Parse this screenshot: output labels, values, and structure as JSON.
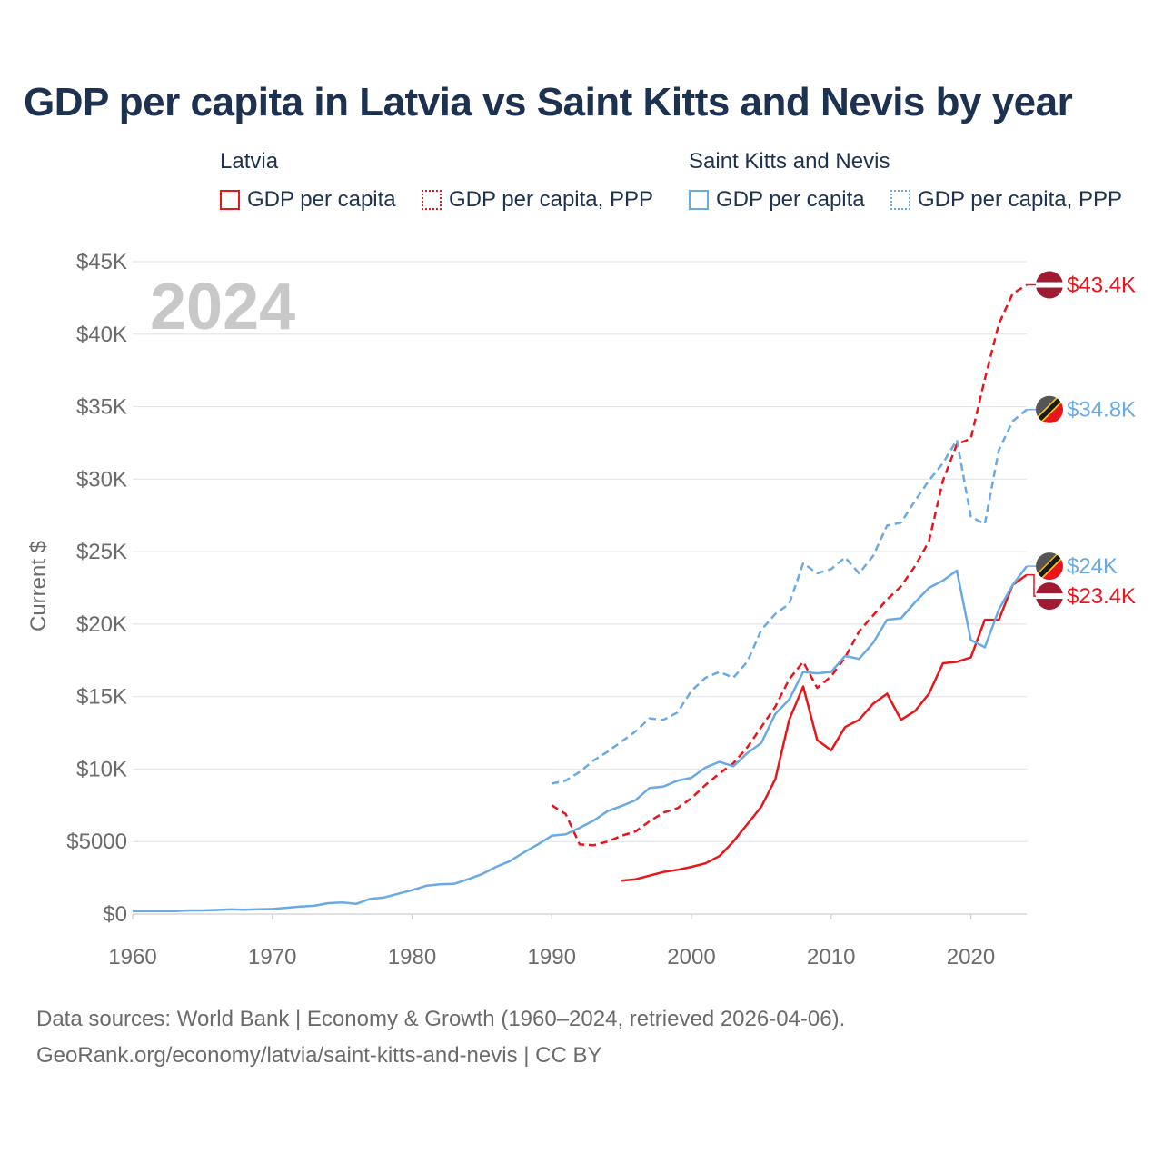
{
  "title": "GDP per capita in Latvia vs Saint Kitts and Nevis by year",
  "legend": {
    "groups": [
      {
        "name": "Latvia",
        "items": [
          "GDP per capita",
          "GDP per capita, PPP"
        ]
      },
      {
        "name": "Saint Kitts and Nevis",
        "items": [
          "GDP per capita",
          "GDP per capita, PPP"
        ]
      }
    ]
  },
  "year_watermark": "2024",
  "footer": {
    "line1": "Data sources: World Bank | Economy & Growth (1960–2024, retrieved 2026-04-06).",
    "line2": "GeoRank.org/economy/latvia/saint-kitts-and-nevis | CC BY"
  },
  "colors": {
    "latvia": "#e8151b",
    "skn": "#6aaae4",
    "title": "#1d3150",
    "axis_text": "#6b6b6b",
    "grid": "#e6e6e6",
    "watermark": "#c8c8c8"
  },
  "chart_data": {
    "type": "line",
    "title": "GDP per capita in Latvia vs Saint Kitts and Nevis by year",
    "xlabel": "",
    "ylabel": "Current $",
    "xlim": [
      1960,
      2024
    ],
    "ylim": [
      0,
      45000
    ],
    "x_ticks": [
      1960,
      1970,
      1980,
      1990,
      2000,
      2010,
      2020
    ],
    "x_tick_labels": [
      "1960",
      "1970",
      "1980",
      "1990",
      "2000",
      "2010",
      "2020"
    ],
    "y_ticks": [
      0,
      5000,
      10000,
      15000,
      20000,
      25000,
      30000,
      35000,
      40000,
      45000
    ],
    "y_tick_labels": [
      "$0",
      "$5000",
      "$10K",
      "$15K",
      "$20K",
      "$25K",
      "$30K",
      "$35K",
      "$40K",
      "$45K"
    ],
    "grid": true,
    "legend_position": "top",
    "series": [
      {
        "name": "Latvia GDP per capita",
        "country": "Latvia",
        "style": "solid",
        "color": "#e8151b",
        "end_label": "$23.4K",
        "x": [
          1995,
          1996,
          1997,
          1998,
          1999,
          2000,
          2001,
          2002,
          2003,
          2004,
          2005,
          2006,
          2007,
          2008,
          2009,
          2010,
          2011,
          2012,
          2013,
          2014,
          2015,
          2016,
          2017,
          2018,
          2019,
          2020,
          2021,
          2022,
          2023,
          2024
        ],
        "y": [
          2300,
          2400,
          2650,
          2900,
          3050,
          3250,
          3500,
          4000,
          5000,
          6200,
          7400,
          9300,
          13400,
          15700,
          12000,
          11300,
          12900,
          13400,
          14500,
          15200,
          13400,
          14000,
          15200,
          17300,
          17400,
          17700,
          20300,
          20300,
          22700,
          23400
        ]
      },
      {
        "name": "Latvia GDP per capita, PPP",
        "country": "Latvia",
        "style": "dashed",
        "color": "#e8151b",
        "end_label": "$43.4K",
        "x": [
          1990,
          1991,
          1992,
          1993,
          1994,
          1995,
          1996,
          1997,
          1998,
          1999,
          2000,
          2001,
          2002,
          2003,
          2004,
          2005,
          2006,
          2007,
          2008,
          2009,
          2010,
          2011,
          2012,
          2013,
          2014,
          2015,
          2016,
          2017,
          2018,
          2019,
          2020,
          2021,
          2022,
          2023,
          2024
        ],
        "y": [
          7500,
          6900,
          4800,
          4750,
          5000,
          5400,
          5700,
          6400,
          7000,
          7300,
          8000,
          8900,
          9700,
          10400,
          11500,
          12900,
          14300,
          16200,
          17400,
          15600,
          16400,
          17700,
          19500,
          20600,
          21700,
          22600,
          24000,
          25700,
          29900,
          32400,
          32800,
          36900,
          40700,
          42800,
          43400
        ]
      },
      {
        "name": "Saint Kitts and Nevis GDP per capita",
        "country": "Saint Kitts and Nevis",
        "style": "solid",
        "color": "#6aaae4",
        "end_label": "$24K",
        "x": [
          1960,
          1961,
          1962,
          1963,
          1964,
          1965,
          1966,
          1967,
          1968,
          1969,
          1970,
          1971,
          1972,
          1973,
          1974,
          1975,
          1976,
          1977,
          1978,
          1979,
          1980,
          1981,
          1982,
          1983,
          1984,
          1985,
          1986,
          1987,
          1988,
          1989,
          1990,
          1991,
          1992,
          1993,
          1994,
          1995,
          1996,
          1997,
          1998,
          1999,
          2000,
          2001,
          2002,
          2003,
          2004,
          2005,
          2006,
          2007,
          2008,
          2009,
          2010,
          2011,
          2012,
          2013,
          2014,
          2015,
          2016,
          2017,
          2018,
          2019,
          2020,
          2021,
          2022,
          2023,
          2024
        ],
        "y": [
          200,
          200,
          200,
          200,
          250,
          250,
          280,
          320,
          300,
          330,
          350,
          430,
          520,
          570,
          750,
          800,
          700,
          1050,
          1150,
          1400,
          1650,
          1950,
          2050,
          2080,
          2400,
          2750,
          3250,
          3650,
          4250,
          4800,
          5400,
          5500,
          5950,
          6450,
          7100,
          7450,
          7850,
          8700,
          8800,
          9200,
          9400,
          10100,
          10500,
          10200,
          11100,
          11800,
          13800,
          14800,
          16700,
          16600,
          16700,
          17800,
          17600,
          18700,
          20300,
          20400,
          21500,
          22500,
          23000,
          23700,
          18900,
          18400,
          21000,
          22700,
          24000
        ]
      },
      {
        "name": "Saint Kitts and Nevis GDP per capita, PPP",
        "country": "Saint Kitts and Nevis",
        "style": "dashed",
        "color": "#6aaae4",
        "end_label": "$34.8K",
        "x": [
          1990,
          1991,
          1992,
          1993,
          1994,
          1995,
          1996,
          1997,
          1998,
          1999,
          2000,
          2001,
          2002,
          2003,
          2004,
          2005,
          2006,
          2007,
          2008,
          2009,
          2010,
          2011,
          2012,
          2013,
          2014,
          2015,
          2016,
          2017,
          2018,
          2019,
          2020,
          2021,
          2022,
          2023,
          2024
        ],
        "y": [
          9000,
          9200,
          9800,
          10600,
          11200,
          11900,
          12600,
          13500,
          13400,
          13900,
          15400,
          16300,
          16700,
          16300,
          17400,
          19600,
          20700,
          21400,
          24200,
          23500,
          23800,
          24600,
          23500,
          24700,
          26800,
          27000,
          28500,
          29900,
          31100,
          32700,
          27400,
          26900,
          32000,
          34000,
          34800
        ]
      }
    ]
  }
}
